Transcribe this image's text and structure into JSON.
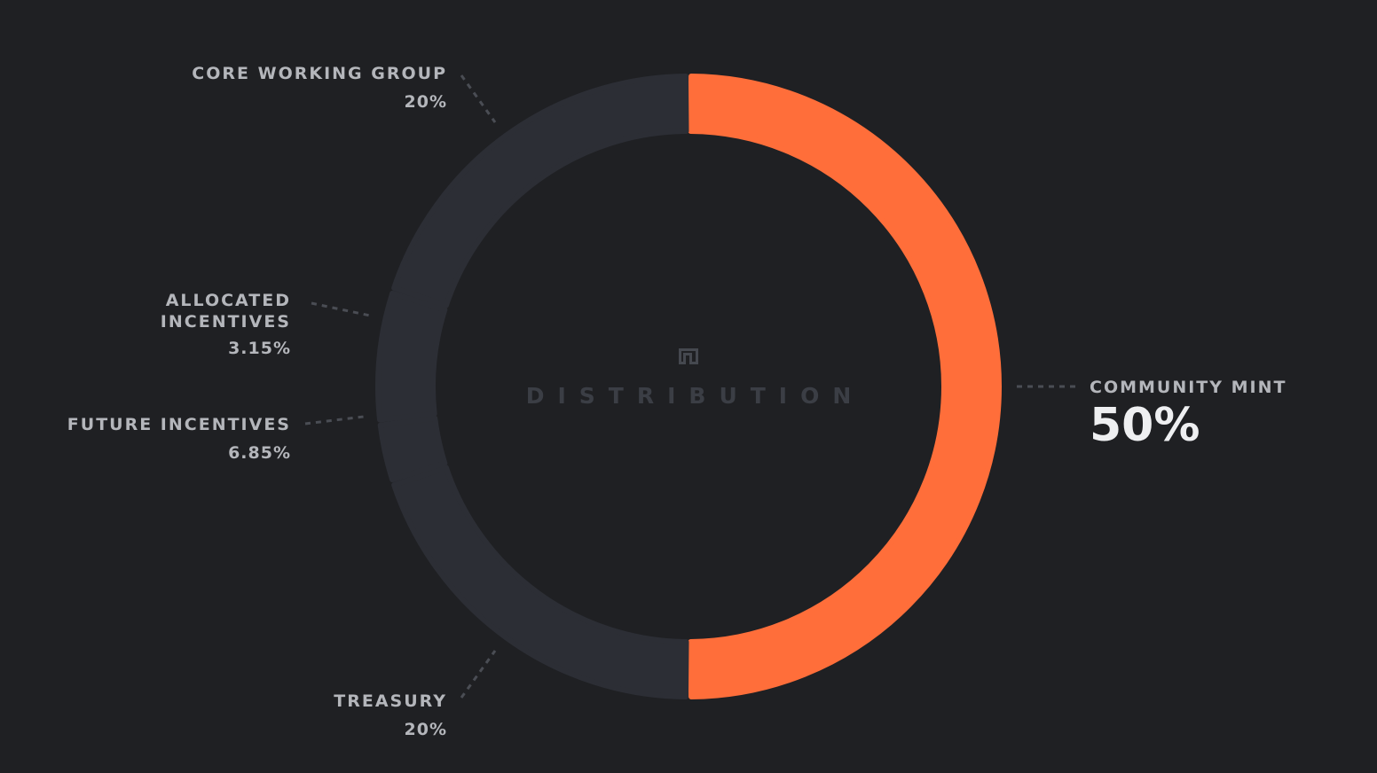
{
  "chart_data": {
    "type": "pie",
    "title": "DISTRIBUTION",
    "series": [
      {
        "name": "",
        "values": [
          50,
          20,
          3.15,
          6.85,
          20
        ]
      }
    ],
    "categories": [
      "COMMUNITY MINT",
      "CORE WORKING GROUP",
      "ALLOCATED INCENTIVES",
      "FUTURE INCENTIVES",
      "TREASURY"
    ],
    "value_labels": [
      "50%",
      "20%",
      "3.15%",
      "6.85%",
      "20%"
    ],
    "style": "donut",
    "colors": {
      "highlight": "#ff6e3a",
      "segment": "#2c2e35",
      "background": "#1f2023",
      "label": "#b4b6bb",
      "highlight_value": "#eeeff1",
      "center_text": "#3b3e45",
      "leader_line": "#4a4d54"
    }
  },
  "labels": {
    "core": {
      "name": "CORE WORKING GROUP",
      "value": "20%"
    },
    "allocated": {
      "name_line1": "ALLOCATED",
      "name_line2": "INCENTIVES",
      "value": "3.15%"
    },
    "future": {
      "name": "FUTURE INCENTIVES",
      "value": "6.85%"
    },
    "treasury": {
      "name": "TREASURY",
      "value": "20%"
    },
    "community": {
      "name": "COMMUNITY MINT",
      "value": "50%"
    }
  },
  "center": {
    "title": "DISTRIBUTION",
    "icon": "logo-mark-icon"
  }
}
